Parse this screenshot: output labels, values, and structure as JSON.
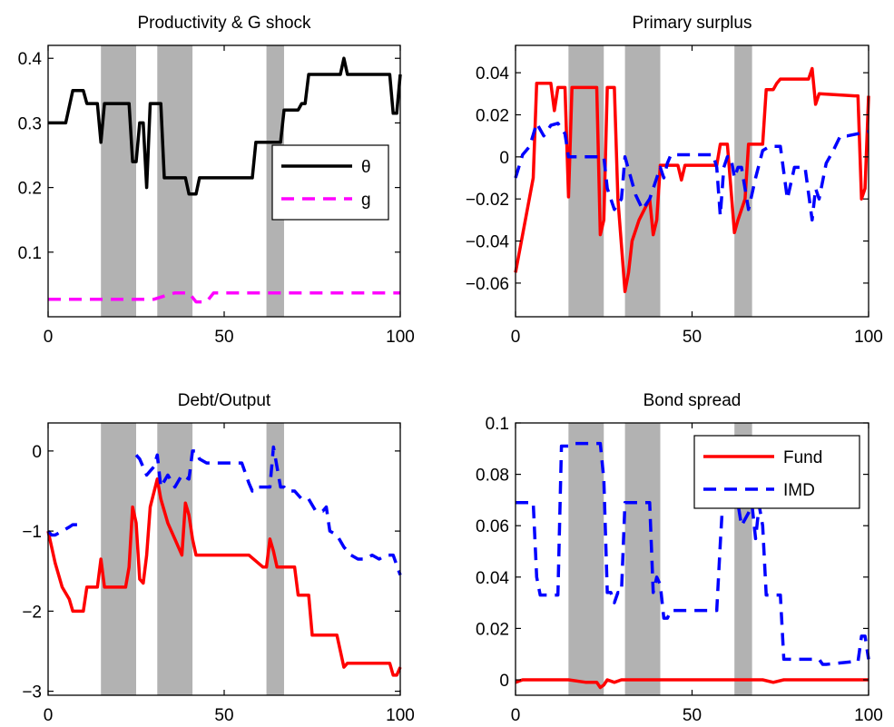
{
  "chart_data": [
    {
      "type": "line",
      "title": "Productivity & G shock",
      "xlim": [
        0,
        100
      ],
      "ylim": [
        0,
        0.42
      ],
      "xticks": [
        0,
        50,
        100
      ],
      "yticks": [
        0.1,
        0.2,
        0.3,
        0.4
      ],
      "ytick_labels": [
        "0.1",
        "0.2",
        "0.3",
        "0.4"
      ],
      "shaded": [
        [
          15,
          25
        ],
        [
          31,
          41
        ],
        [
          62,
          67
        ]
      ],
      "legend": {
        "position": "inside-right"
      },
      "series": [
        {
          "name": "θ",
          "color": "#000000",
          "style": "solid",
          "x": [
            0,
            5,
            7,
            10,
            11,
            12,
            14,
            15,
            16,
            17,
            23,
            24,
            25,
            26,
            27,
            28,
            29,
            31,
            32,
            33,
            39,
            40,
            41,
            42,
            43,
            57,
            58,
            59,
            60,
            62,
            63,
            64,
            65,
            66,
            67,
            68,
            69,
            71,
            72,
            73,
            74,
            75,
            76,
            83,
            84,
            85,
            86,
            97,
            98,
            99,
            100
          ],
          "y": [
            0.3,
            0.3,
            0.35,
            0.35,
            0.33,
            0.33,
            0.33,
            0.27,
            0.33,
            0.33,
            0.33,
            0.24,
            0.24,
            0.3,
            0.3,
            0.2,
            0.33,
            0.33,
            0.33,
            0.215,
            0.215,
            0.19,
            0.19,
            0.19,
            0.215,
            0.215,
            0.215,
            0.27,
            0.27,
            0.27,
            0.27,
            0.27,
            0.27,
            0.27,
            0.32,
            0.32,
            0.32,
            0.32,
            0.33,
            0.33,
            0.375,
            0.375,
            0.375,
            0.375,
            0.4,
            0.375,
            0.375,
            0.375,
            0.315,
            0.315,
            0.375
          ]
        },
        {
          "name": "g",
          "color": "#ff00ff",
          "style": "dashed",
          "x": [
            0,
            30,
            33,
            36,
            40,
            42,
            44,
            45,
            47,
            100
          ],
          "y": [
            0.027,
            0.027,
            0.032,
            0.037,
            0.037,
            0.023,
            0.023,
            0.023,
            0.037,
            0.037
          ]
        }
      ]
    },
    {
      "type": "line",
      "title": "Primary surplus",
      "xlim": [
        0,
        100
      ],
      "ylim": [
        -0.076,
        0.053
      ],
      "xticks": [
        0,
        50,
        100
      ],
      "yticks": [
        -0.06,
        -0.04,
        -0.02,
        0,
        0.02,
        0.04
      ],
      "ytick_labels": [
        "−0.06",
        "−0.04",
        "−0.02",
        "0",
        "0.02",
        "0.04"
      ],
      "shaded": [
        [
          15,
          25
        ],
        [
          31,
          41
        ],
        [
          62,
          67
        ]
      ],
      "series": [
        {
          "name": "",
          "color": "#ff0000",
          "style": "solid",
          "x": [
            0,
            5,
            6,
            10,
            11,
            12,
            13,
            14,
            15,
            16,
            17,
            23,
            24,
            25,
            26,
            27,
            28,
            29,
            31,
            32,
            33,
            35,
            38,
            39,
            40,
            41,
            44,
            46,
            47,
            48,
            49,
            50,
            55,
            57,
            58,
            59,
            60,
            62,
            63,
            64,
            65,
            66,
            67,
            70,
            71,
            72,
            73,
            74,
            75,
            76,
            83,
            84,
            85,
            86,
            96,
            97,
            98,
            99,
            100
          ],
          "y": [
            -0.055,
            -0.01,
            0.035,
            0.035,
            0.022,
            0.033,
            0.033,
            0.033,
            -0.019,
            0.033,
            0.033,
            0.033,
            -0.037,
            -0.03,
            0.033,
            0.033,
            0.033,
            -0.02,
            -0.064,
            -0.055,
            -0.04,
            -0.03,
            -0.02,
            -0.037,
            -0.03,
            -0.004,
            -0.004,
            -0.004,
            -0.011,
            -0.004,
            -0.004,
            -0.004,
            -0.004,
            -0.004,
            0.006,
            0.006,
            0.006,
            -0.036,
            -0.03,
            -0.025,
            -0.02,
            0.006,
            0.006,
            0.006,
            0.032,
            0.032,
            0.032,
            0.035,
            0.037,
            0.037,
            0.037,
            0.042,
            0.025,
            0.03,
            0.029,
            0.029,
            -0.02,
            -0.015,
            0.029
          ]
        },
        {
          "name": "",
          "color": "#0000ff",
          "style": "dashed",
          "x": [
            0,
            2,
            4,
            6,
            8,
            10,
            12,
            14,
            15,
            18,
            25,
            26,
            28,
            30,
            31,
            34,
            36,
            38,
            40,
            41,
            42,
            43,
            44,
            56,
            57,
            58,
            59,
            60,
            61,
            62,
            63,
            64,
            66,
            68,
            70,
            72,
            75,
            77,
            79,
            82,
            84,
            85,
            86,
            88,
            90,
            92,
            94,
            100
          ],
          "y": [
            -0.01,
            0.001,
            0.005,
            0.016,
            0.01,
            0.015,
            0.016,
            0.011,
            0.0,
            0.0,
            0.0,
            -0.015,
            -0.025,
            -0.02,
            0.0,
            -0.018,
            -0.025,
            -0.02,
            -0.01,
            -0.005,
            -0.01,
            -0.003,
            0.001,
            0.001,
            -0.005,
            -0.028,
            -0.005,
            0.0,
            0.0,
            -0.01,
            -0.005,
            -0.005,
            -0.025,
            -0.01,
            0.003,
            0.005,
            0.005,
            -0.02,
            -0.005,
            -0.005,
            -0.03,
            -0.015,
            -0.02,
            -0.003,
            0.003,
            0.01,
            0.01,
            0.012
          ]
        }
      ]
    },
    {
      "type": "line",
      "title": "Debt/Output",
      "xlim": [
        0,
        100
      ],
      "ylim": [
        -3.05,
        0.35
      ],
      "xticks": [
        0,
        50,
        100
      ],
      "yticks": [
        -3,
        -2,
        -1,
        0
      ],
      "ytick_labels": [
        "−3",
        "−2",
        "−1",
        "0"
      ],
      "shaded": [
        [
          15,
          25
        ],
        [
          31,
          41
        ],
        [
          62,
          67
        ]
      ],
      "series": [
        {
          "name": "",
          "color": "#ff0000",
          "style": "solid",
          "x": [
            0,
            2,
            4,
            6,
            7,
            8,
            10,
            11,
            12,
            14,
            15,
            16,
            17,
            22,
            23,
            24,
            25,
            26,
            27,
            28,
            29,
            31,
            32,
            34,
            36,
            38,
            39,
            40,
            41,
            42,
            44,
            48,
            50,
            57,
            61,
            62,
            63,
            64,
            65,
            66,
            70,
            71,
            74,
            75,
            82,
            84,
            85,
            96,
            97,
            98,
            99,
            100
          ],
          "y": [
            -1.0,
            -1.4,
            -1.7,
            -1.85,
            -2.0,
            -2.0,
            -2.0,
            -1.7,
            -1.7,
            -1.7,
            -1.35,
            -1.7,
            -1.7,
            -1.7,
            -1.45,
            -0.7,
            -0.9,
            -1.6,
            -1.65,
            -1.3,
            -0.7,
            -0.35,
            -0.6,
            -0.9,
            -1.1,
            -1.3,
            -0.65,
            -0.8,
            -1.1,
            -1.3,
            -1.3,
            -1.3,
            -1.3,
            -1.3,
            -1.45,
            -1.45,
            -1.1,
            -1.25,
            -1.45,
            -1.45,
            -1.45,
            -1.8,
            -1.8,
            -2.3,
            -2.3,
            -2.7,
            -2.65,
            -2.65,
            -2.65,
            -2.8,
            -2.8,
            -2.7
          ]
        },
        {
          "name": "",
          "color": "#0000ff",
          "style": "dashed",
          "x": [
            0,
            1,
            2,
            4,
            6,
            7,
            9,
            10
          ],
          "y": [
            -1.0,
            -1.05,
            -1.05,
            -1.0,
            -0.95,
            -0.92,
            -0.92,
            -0.92
          ]
        },
        {
          "name": "",
          "color": "#0000ff",
          "style": "dashed",
          "x": [
            25,
            26,
            28,
            29,
            30,
            31,
            32,
            34,
            36,
            38,
            40,
            41,
            42,
            43,
            45,
            50,
            52,
            55,
            57,
            58,
            59,
            63,
            64,
            65,
            66,
            67,
            68,
            70,
            72,
            74,
            76,
            78,
            79,
            80,
            82,
            84,
            86,
            88,
            90,
            92,
            94,
            96,
            98,
            100
          ],
          "y": [
            -0.05,
            -0.1,
            -0.3,
            -0.25,
            -0.2,
            -0.05,
            -0.45,
            -0.3,
            -0.45,
            -0.3,
            -0.35,
            0.0,
            0.0,
            -0.1,
            -0.15,
            -0.15,
            -0.15,
            -0.15,
            -0.4,
            -0.5,
            -0.45,
            -0.45,
            0.05,
            -0.2,
            -0.45,
            -0.45,
            -0.5,
            -0.5,
            -0.6,
            -0.6,
            -0.75,
            -0.75,
            -0.7,
            -1.0,
            -1.05,
            -1.2,
            -1.3,
            -1.35,
            -1.35,
            -1.3,
            -1.35,
            -1.3,
            -1.3,
            -1.55
          ]
        }
      ]
    },
    {
      "type": "line",
      "title": "Bond spread",
      "xlim": [
        0,
        100
      ],
      "ylim": [
        -0.006,
        0.1
      ],
      "xticks": [
        0,
        50,
        100
      ],
      "yticks": [
        0,
        0.02,
        0.04,
        0.06,
        0.08,
        0.1
      ],
      "ytick_labels": [
        "0",
        "0.02",
        "0.04",
        "0.06",
        "0.08",
        "0.1"
      ],
      "shaded": [
        [
          15,
          25
        ],
        [
          31,
          41
        ],
        [
          62,
          67
        ]
      ],
      "legend": {
        "position": "top-right"
      },
      "series": [
        {
          "name": "Fund",
          "color": "#ff0000",
          "style": "solid",
          "x": [
            0,
            2,
            5,
            10,
            15,
            20,
            23,
            24,
            25,
            26,
            28,
            30,
            35,
            40,
            50,
            60,
            70,
            73,
            76,
            80,
            90,
            100
          ],
          "y": [
            -0.001,
            0.0,
            0.0,
            0.0,
            0.0,
            -0.001,
            -0.001,
            -0.003,
            -0.002,
            0.0,
            -0.001,
            0.0,
            0.0,
            0.0,
            0.0,
            0.0,
            0.0,
            -0.001,
            0.0,
            0.0,
            0.0,
            0.0
          ]
        },
        {
          "name": "IMD",
          "color": "#0000ff",
          "style": "dashed",
          "x": [
            0,
            5,
            6,
            7,
            8,
            11,
            12,
            13,
            14,
            15,
            16,
            23,
            24,
            25,
            26,
            27,
            28,
            29,
            30,
            31,
            32,
            38,
            39,
            40,
            41,
            42,
            43,
            44,
            50,
            53,
            56,
            57,
            58,
            59,
            61,
            62,
            64,
            66,
            67,
            68,
            69,
            70,
            71,
            72,
            75,
            76,
            84,
            85,
            86,
            87,
            88,
            95,
            97,
            98,
            99,
            100
          ],
          "y": [
            0.069,
            0.069,
            0.04,
            0.033,
            0.033,
            0.033,
            0.033,
            0.091,
            0.091,
            0.091,
            0.092,
            0.092,
            0.092,
            0.078,
            0.034,
            0.034,
            0.03,
            0.034,
            0.034,
            0.069,
            0.069,
            0.069,
            0.034,
            0.04,
            0.037,
            0.024,
            0.024,
            0.027,
            0.027,
            0.027,
            0.027,
            0.027,
            0.053,
            0.077,
            0.077,
            0.077,
            0.06,
            0.065,
            0.068,
            0.055,
            0.068,
            0.06,
            0.033,
            0.033,
            0.033,
            0.008,
            0.008,
            0.008,
            0.008,
            0.006,
            0.006,
            0.007,
            0.007,
            0.017,
            0.017,
            0.008
          ]
        }
      ]
    }
  ]
}
